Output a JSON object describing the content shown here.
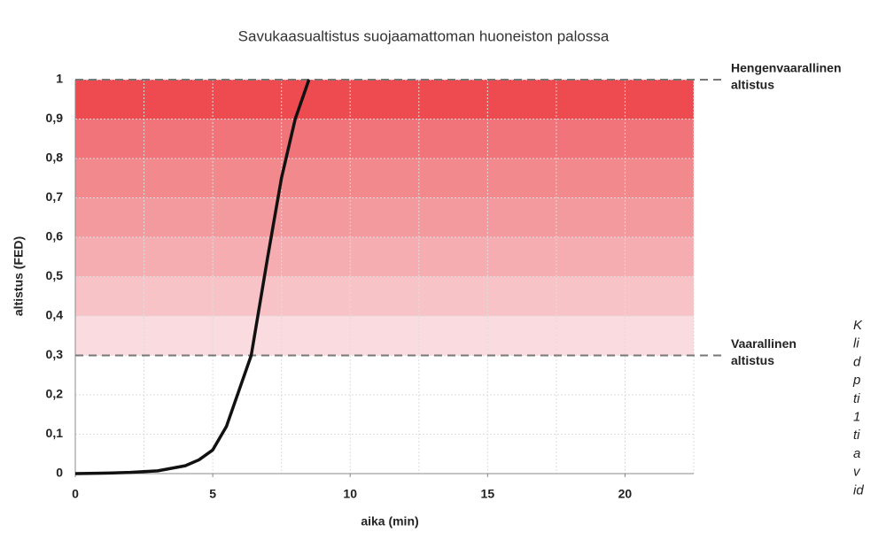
{
  "chart_data": {
    "type": "line",
    "title": "Savukaasualtistus suojaamattoman huoneiston palossa",
    "xlabel": "aika (min)",
    "ylabel": "altistus (FED)",
    "xlim": [
      0,
      22.5
    ],
    "ylim": [
      0,
      1
    ],
    "xticks": [
      0,
      5,
      10,
      15,
      20
    ],
    "xgrid": [
      2.5,
      5,
      7.5,
      10,
      12.5,
      15,
      17.5,
      20,
      22.5
    ],
    "yticks": [
      0,
      {
        "value": 0.1,
        "label": "0,1"
      },
      {
        "value": 0.2,
        "label": "0,2"
      },
      {
        "value": 0.3,
        "label": "0,3"
      },
      {
        "value": 0.4,
        "label": "0,4"
      },
      {
        "value": 0.5,
        "label": "0,5"
      },
      {
        "value": 0.6,
        "label": "0,6"
      },
      {
        "value": 0.7,
        "label": "0,7"
      },
      {
        "value": 0.8,
        "label": "0,8"
      },
      {
        "value": 0.9,
        "label": "0,9"
      },
      1
    ],
    "grid": true,
    "bands": [
      {
        "from": 0.3,
        "to": 0.4,
        "color": "#fadbdf"
      },
      {
        "from": 0.4,
        "to": 0.5,
        "color": "#f7c3c7"
      },
      {
        "from": 0.5,
        "to": 0.6,
        "color": "#f5adb1"
      },
      {
        "from": 0.6,
        "to": 0.7,
        "color": "#f39a9e"
      },
      {
        "from": 0.7,
        "to": 0.8,
        "color": "#f2898d"
      },
      {
        "from": 0.8,
        "to": 0.9,
        "color": "#f07479"
      },
      {
        "from": 0.9,
        "to": 1,
        "color": "#ee4b51"
      }
    ],
    "thresholds": [
      {
        "value": 1,
        "label_lines": [
          "Hengenvaarallinen",
          "altistus"
        ]
      },
      {
        "value": 0.3,
        "label_lines": [
          "Vaarallinen",
          "altistus"
        ]
      }
    ],
    "x": [
      0,
      1,
      2,
      3,
      4,
      4.5,
      5,
      5.5,
      6,
      6.4,
      7,
      7.5,
      8,
      8.5
    ],
    "series": [
      {
        "color": "#111111",
        "values": [
          0,
          0.001,
          0.003,
          0.007,
          0.02,
          0.035,
          0.06,
          0.12,
          0.22,
          0.3,
          0.55,
          0.75,
          0.9,
          1
        ]
      }
    ],
    "side_text": [
      "K",
      "li",
      "d",
      "p",
      "ti",
      "1",
      "ti",
      "a",
      "v",
      "id"
    ]
  }
}
